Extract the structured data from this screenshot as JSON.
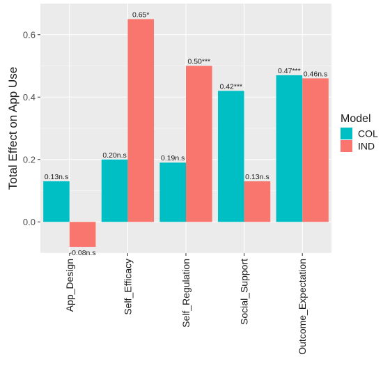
{
  "chart_data": {
    "type": "bar",
    "categories": [
      "App_Design",
      "Self_Efficacy",
      "Self_Regulation",
      "Social_Support",
      "Outcome_Expectation"
    ],
    "ylabel": "Total Effect on App Use",
    "xlabel": "",
    "ylim": [
      -0.1,
      0.7
    ],
    "yticks": [
      "0.0",
      "0.2",
      "0.4",
      "0.6"
    ],
    "grid": true,
    "legend": {
      "title": "Model",
      "placement": "right",
      "entries": [
        "COL",
        "IND"
      ]
    },
    "series": [
      {
        "name": "COL",
        "color": "#00BFC4",
        "values": [
          0.13,
          0.2,
          0.19,
          0.42,
          0.47
        ],
        "labels": [
          "0.13n.s",
          "0.20n.s",
          "0.19n.s",
          "0.42***",
          "0.47***"
        ]
      },
      {
        "name": "IND",
        "color": "#F8766D",
        "values": [
          -0.08,
          0.65,
          0.5,
          0.13,
          0.46
        ],
        "labels": [
          "-0.08n.s",
          "0.65*",
          "0.50***",
          "0.13n.s",
          "0.46n.s"
        ]
      }
    ]
  }
}
